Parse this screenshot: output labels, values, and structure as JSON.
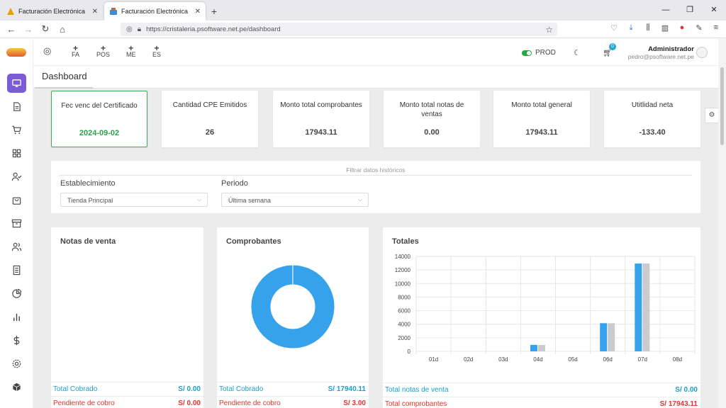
{
  "browser": {
    "tabs": [
      {
        "title": "Facturación Electrónica",
        "active": false
      },
      {
        "title": "Facturación Electrónica",
        "active": true
      }
    ],
    "url": "https://cristaleria.psoftware.net.pe/dashboard"
  },
  "header": {
    "quick_actions": [
      {
        "label": "FA"
      },
      {
        "label": "POS"
      },
      {
        "label": "ME"
      },
      {
        "label": "ES"
      }
    ],
    "env_label": "PROD",
    "cart_count": "0",
    "user_name": "Administrador",
    "user_email": "pedro@psoftware.net.pe"
  },
  "page_title": "Dashboard",
  "stats": [
    {
      "label": "Fec venc del Certificado",
      "value": "2024-09-02"
    },
    {
      "label": "Cantidad CPE Emitidos",
      "value": "26"
    },
    {
      "label": "Monto total comprobantes",
      "value": "17943.11"
    },
    {
      "label": "Monto total notas de ventas",
      "value": "0.00"
    },
    {
      "label": "Monto total general",
      "value": "17943.11"
    },
    {
      "label": "Utitlidad neta",
      "value": "-133.40"
    }
  ],
  "filter": {
    "title": "Filtrar datos históricos",
    "establishment_label": "Establecimiento",
    "establishment_value": "Tienda Principal",
    "period_label": "Periodo",
    "period_value": "Última semana"
  },
  "cards": {
    "notas": {
      "title": "Notas de venta",
      "rows": [
        {
          "label": "Total Cobrado",
          "value": "S/ 0.00"
        },
        {
          "label": "Pendiente de cobro",
          "value": "S/ 0.00"
        }
      ]
    },
    "comprobantes": {
      "title": "Comprobantes",
      "rows": [
        {
          "label": "Total Cobrado",
          "value": "S/ 17940.11"
        },
        {
          "label": "Pendiente de cobro",
          "value": "S/ 3.00"
        }
      ]
    },
    "totales": {
      "title": "Totales",
      "rows": [
        {
          "label": "Total notas de venta",
          "value": "S/ 0.00"
        },
        {
          "label": "Total comprobantes",
          "value": "S/ 17943.11"
        }
      ]
    }
  },
  "colors": {
    "primary": "#36a2eb",
    "secondary": "#c9cbcf",
    "accent": "#7b5bd6"
  },
  "chart_data": [
    {
      "type": "pie",
      "title": "Comprobantes",
      "categories": [
        "Total Cobrado",
        "Pendiente de cobro"
      ],
      "values": [
        17940.11,
        3.0
      ]
    },
    {
      "type": "bar",
      "title": "Totales",
      "categories": [
        "01d",
        "02d",
        "03d",
        "04d",
        "05d",
        "06d",
        "07d",
        "08d"
      ],
      "series": [
        {
          "values": [
            0,
            0,
            0,
            950,
            0,
            4150,
            12950,
            0
          ]
        },
        {
          "values": [
            0,
            0,
            0,
            950,
            0,
            4150,
            12950,
            0
          ]
        }
      ],
      "ylim": [
        0,
        14000
      ],
      "yticks": [
        0,
        2000,
        4000,
        6000,
        8000,
        10000,
        12000,
        14000
      ]
    }
  ]
}
